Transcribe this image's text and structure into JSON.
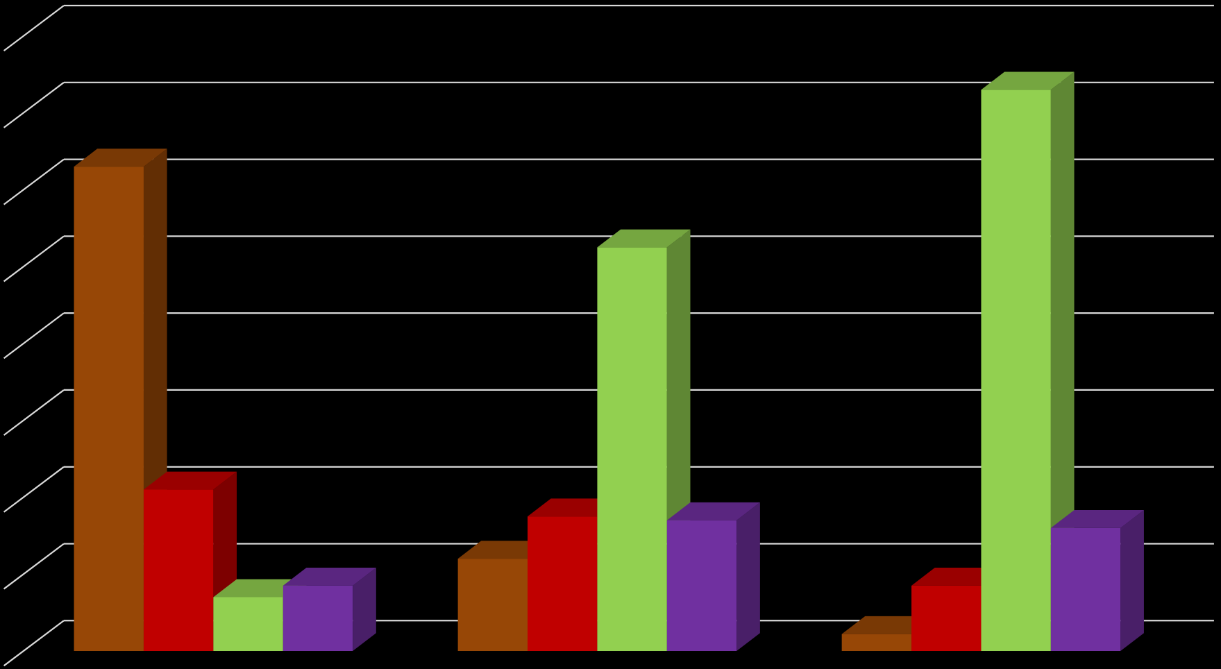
{
  "chart_data": {
    "type": "bar3d",
    "categories": [
      null,
      null,
      null
    ],
    "series": [
      {
        "color": "#974706",
        "values": [
          6.3,
          1.2,
          0.22
        ]
      },
      {
        "color": "#c00000",
        "values": [
          2.1,
          1.75,
          0.85
        ]
      },
      {
        "color": "#92d050",
        "values": [
          0.7,
          5.25,
          7.3
        ]
      },
      {
        "color": "#7030a0",
        "values": [
          0.85,
          1.7,
          1.6
        ]
      }
    ],
    "ylim": [
      0,
      8
    ],
    "yticks": [
      0,
      1,
      2,
      3,
      4,
      5,
      6,
      7,
      8
    ],
    "grid": true,
    "grid_color": "#d9d9d9"
  }
}
